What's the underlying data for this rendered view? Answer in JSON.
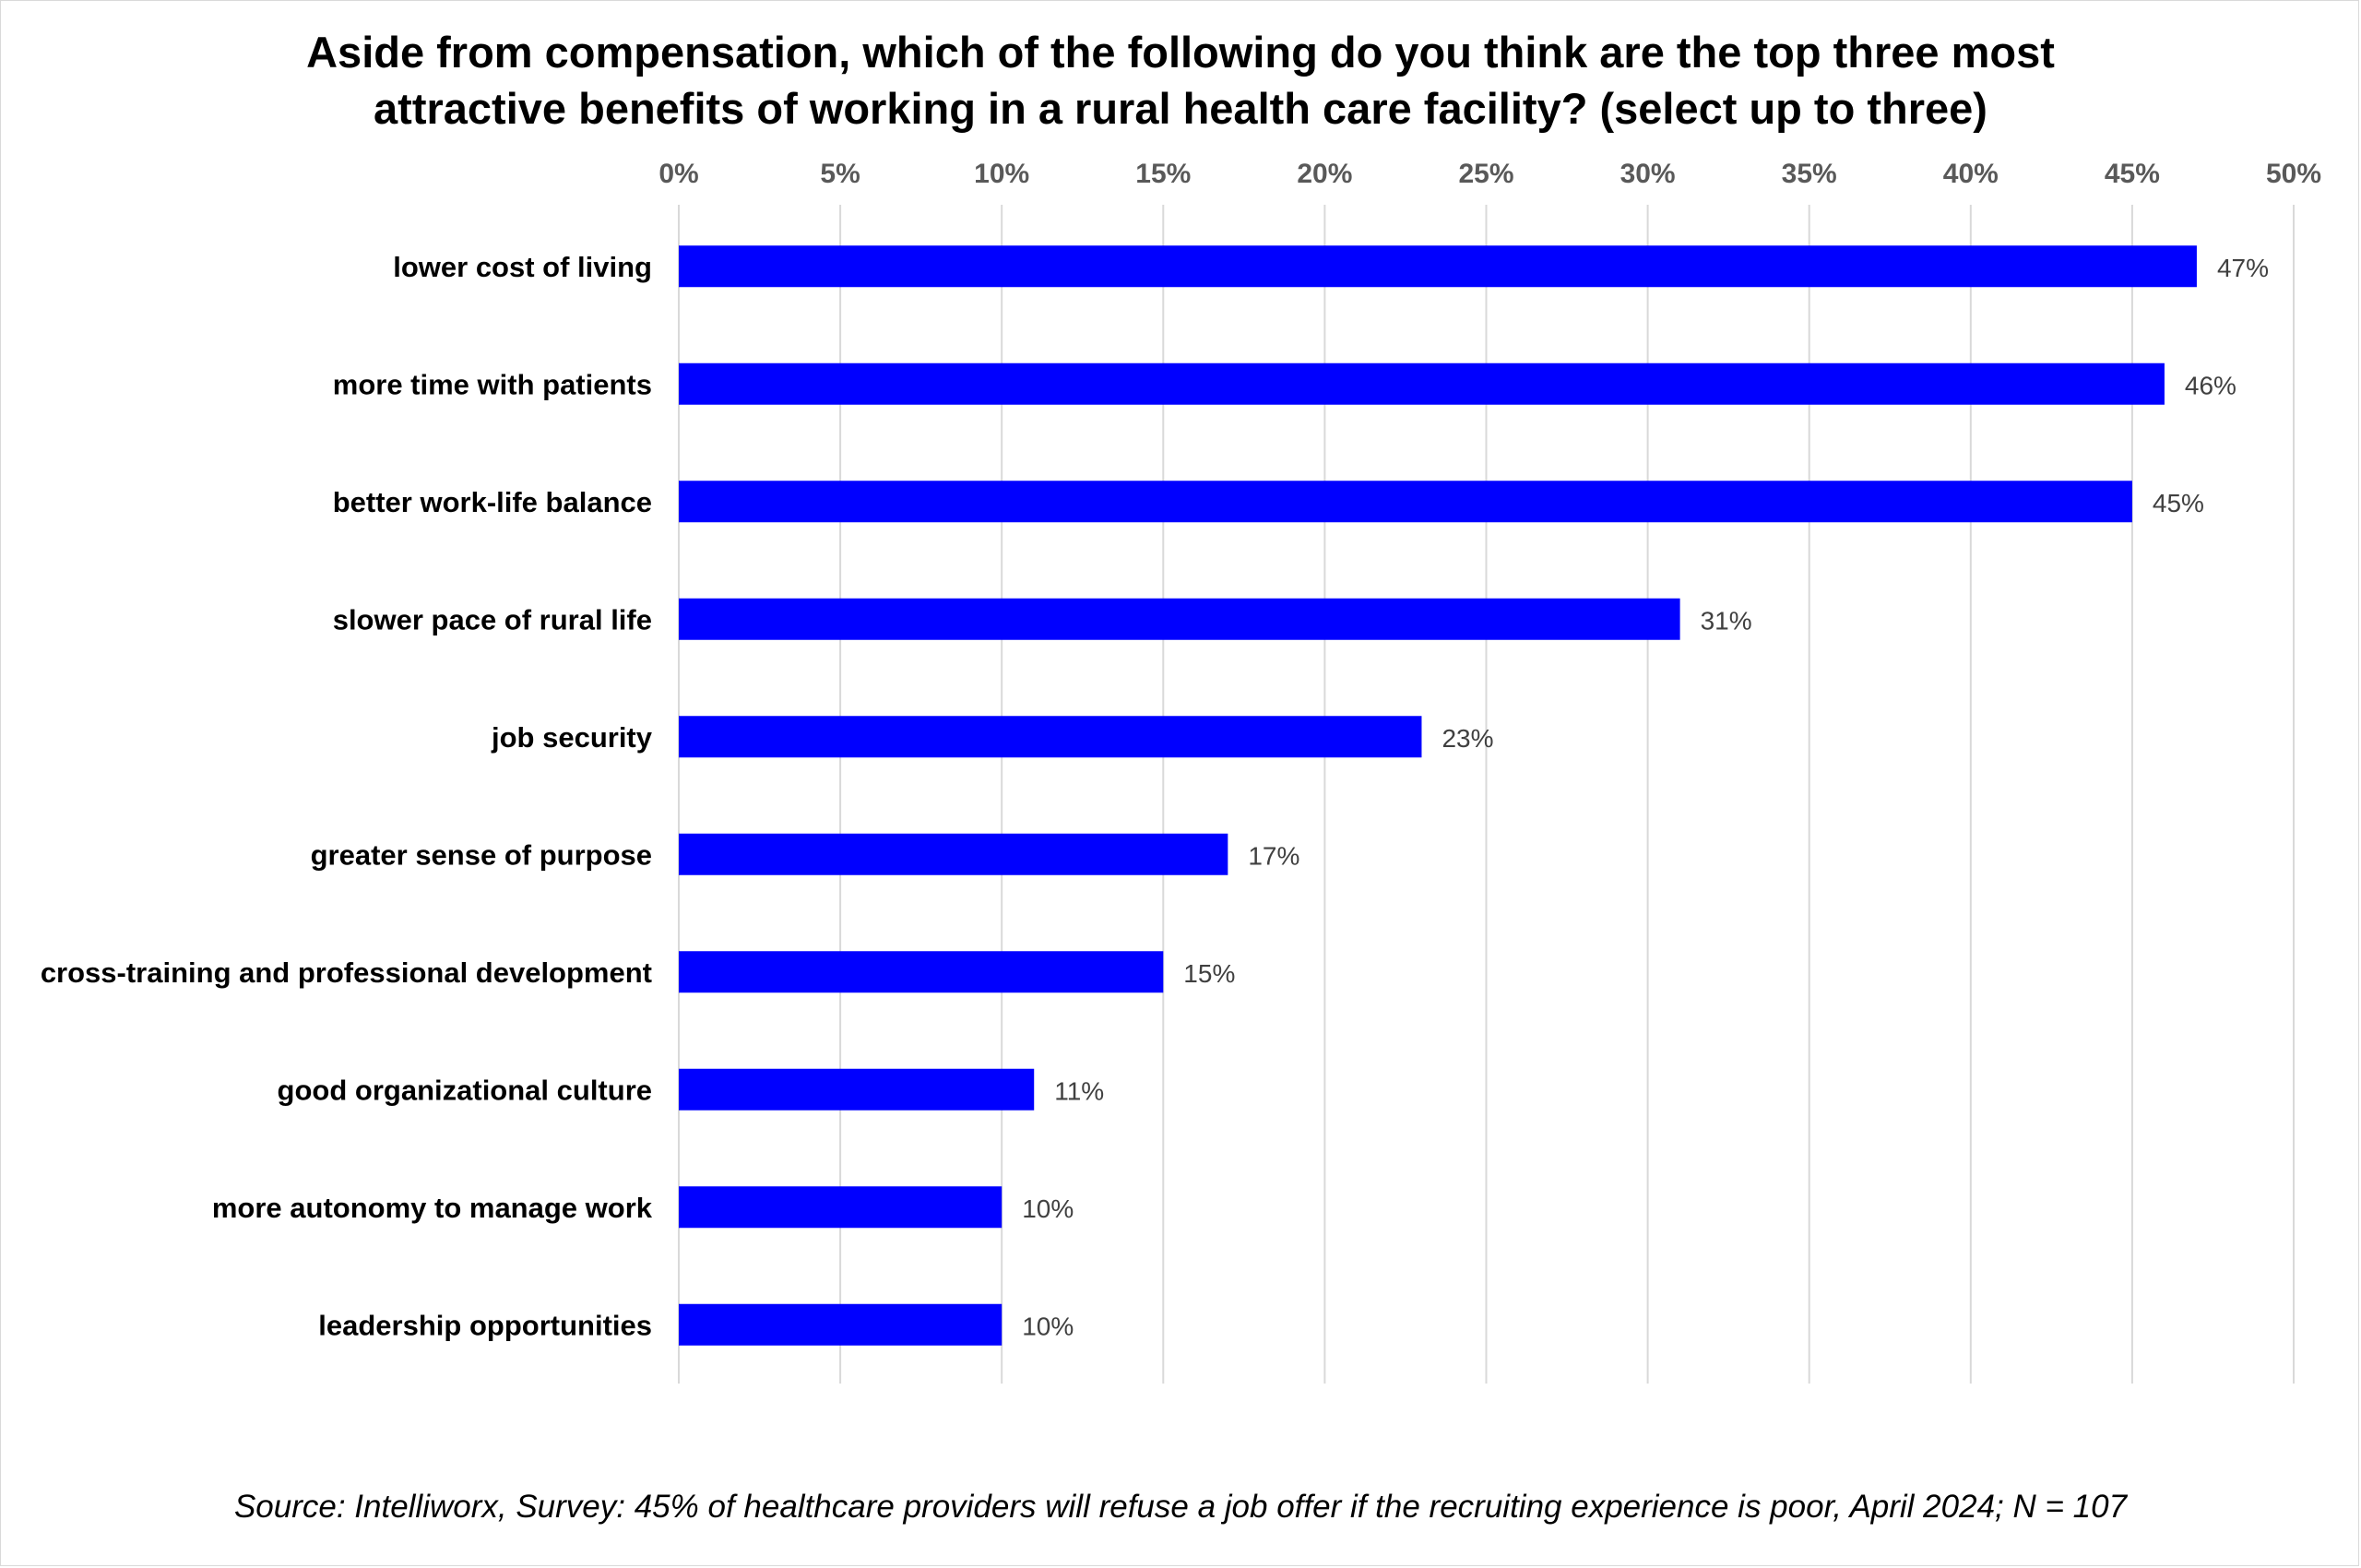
{
  "chart_data": {
    "type": "bar",
    "orientation": "horizontal",
    "title_lines": [
      "Aside from compensation, which of the following do you think are the top three most",
      "attractive benefits of working in a rural health care facility? (select up to three)"
    ],
    "categories": [
      "lower cost of living",
      "more time with patients",
      "better work-life balance",
      "slower pace of rural life",
      "job security",
      "greater sense of purpose",
      "cross-training and professional development",
      "good organizational culture",
      "more autonomy to manage work",
      "leadership opportunities"
    ],
    "values": [
      47,
      46,
      45,
      31,
      23,
      17,
      15,
      11,
      10,
      10
    ],
    "data_labels": [
      "47%",
      "46%",
      "45%",
      "31%",
      "23%",
      "17%",
      "15%",
      "11%",
      "10%",
      "10%"
    ],
    "x_ticks": [
      "0%",
      "5%",
      "10%",
      "15%",
      "20%",
      "25%",
      "30%",
      "35%",
      "40%",
      "45%",
      "50%"
    ],
    "xlim": [
      0,
      50
    ],
    "axis_position": "top",
    "grid": true,
    "legend": "none",
    "bar_color": "#0000FF",
    "grid_color": "#d9d9d9",
    "source": "Source: Intelliworx, Survey: 45% of healthcare providers will refuse a job offer if the recruiting experience is poor, April 2024; N = 107"
  }
}
